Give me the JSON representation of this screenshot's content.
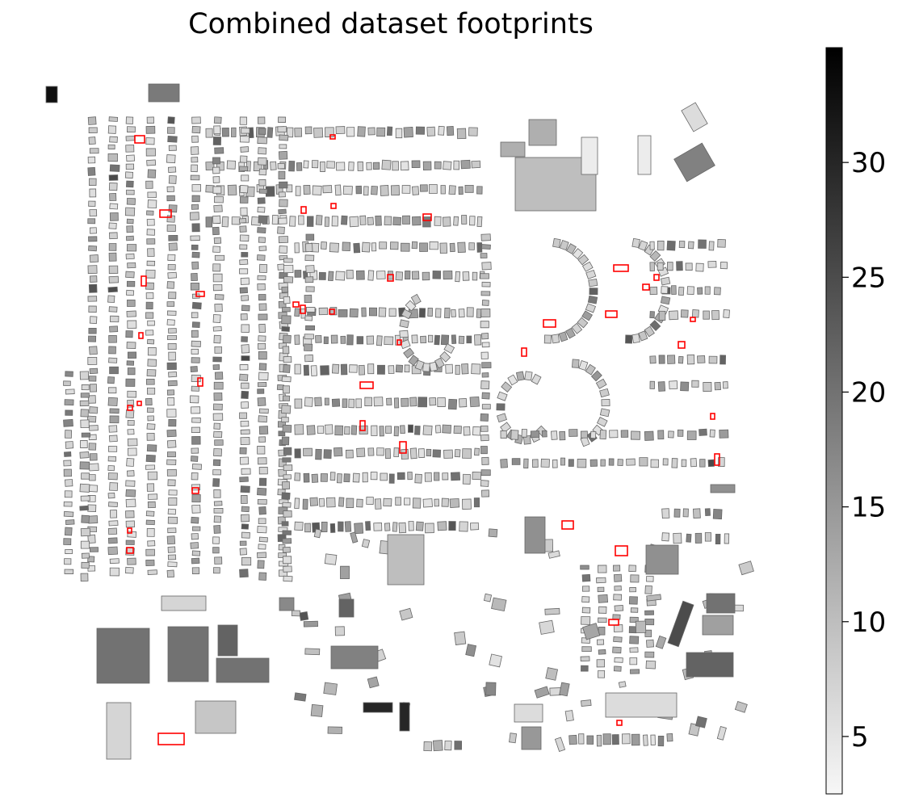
{
  "title": "Combined dataset footprints",
  "colorbar": {
    "ticks": [
      5,
      10,
      15,
      20,
      25,
      30
    ],
    "min": 2.5,
    "max": 35,
    "colormap": [
      "#f7f7f7",
      "#000000"
    ]
  },
  "map": {
    "building_edge_color": "#666666",
    "highlight_color": "#ff0000"
  }
}
